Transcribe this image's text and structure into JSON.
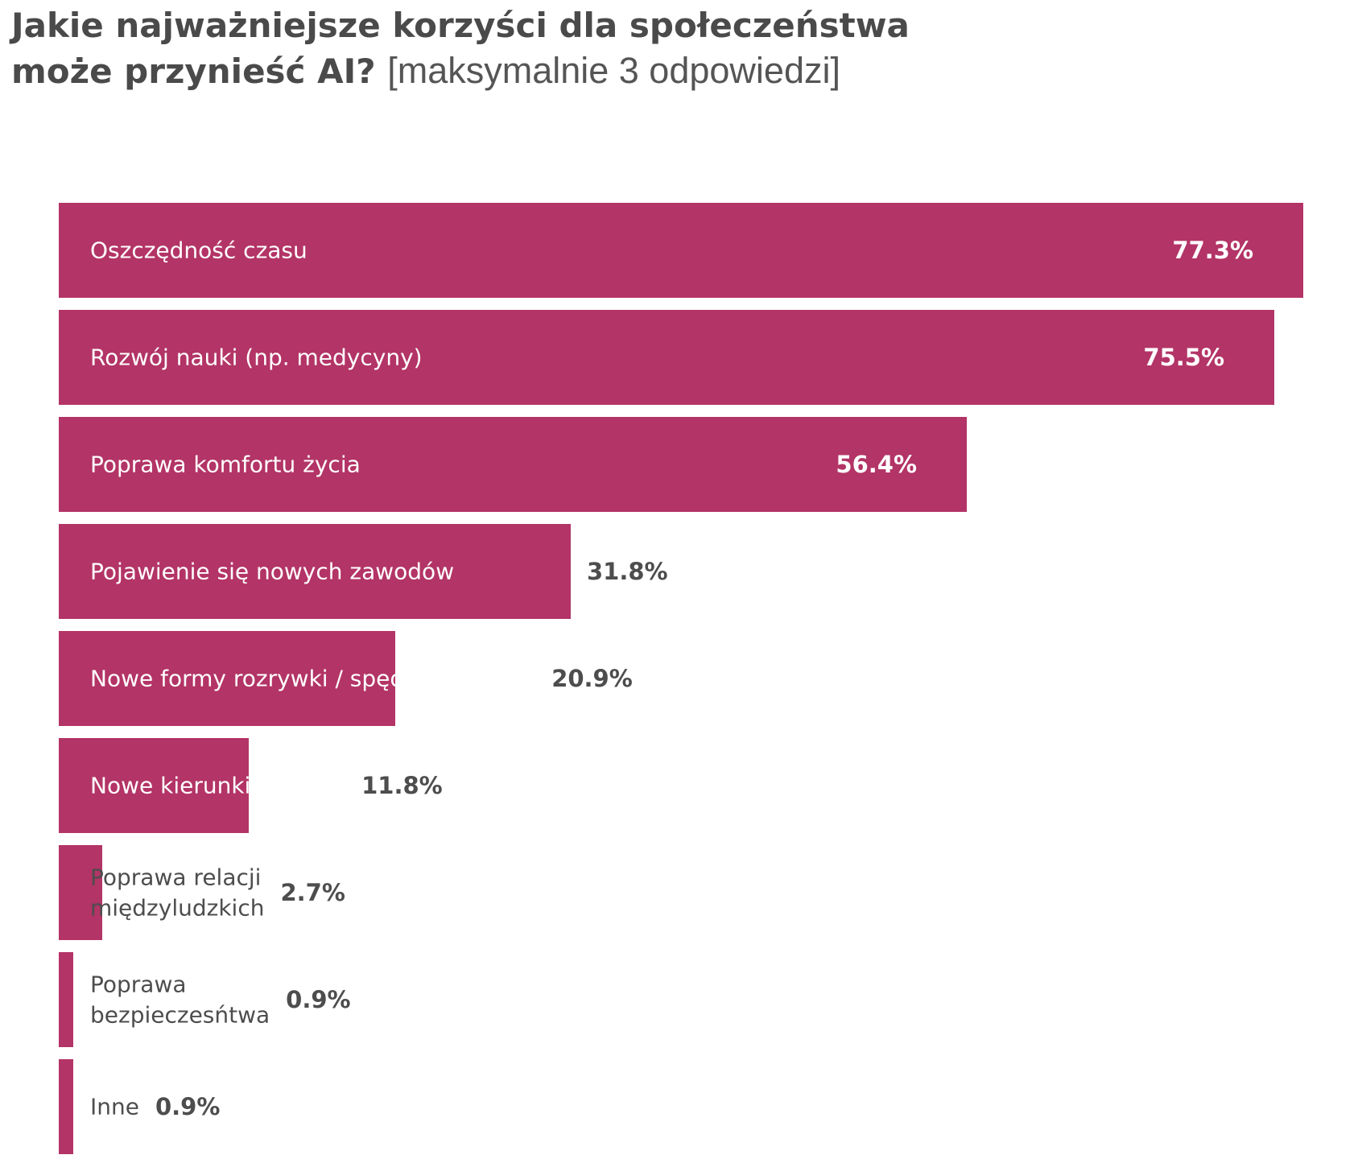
{
  "header": {
    "title_bold_line1": "Jakie najważniejsze korzyści dla społeczeństwa",
    "title_bold_line2": "może przynieść AI?",
    "title_light": "[maksymalnie 3 odpowiedzi]"
  },
  "colors": {
    "bar": "#b33466",
    "text_on_bar": "#ffffff",
    "text_off_bar": "#4d4d4d"
  },
  "chart_data": {
    "type": "bar",
    "orientation": "horizontal",
    "title": "Jakie najważniejsze korzyści dla społeczeństwa może przynieść AI? [maksymalnie 3 odpowiedzi]",
    "categories": [
      [
        "Oszczędność czasu"
      ],
      [
        "Rozwój nauki (np. medycyny)"
      ],
      [
        "Poprawa komfortu życia"
      ],
      [
        "Pojawienie się nowych zawodów"
      ],
      [
        "Nowe formy rozrywki / spędzania czasu"
      ],
      [
        "Nowe kierunki studiów"
      ],
      [
        "Poprawa relacji",
        "międzyludzkich"
      ],
      [
        "Poprawa",
        "bezpieczesńtwa"
      ],
      [
        "Inne"
      ]
    ],
    "values": [
      77.3,
      75.5,
      56.4,
      31.8,
      20.9,
      11.8,
      2.7,
      0.9,
      0.9
    ],
    "value_labels": [
      "77.3%",
      "75.5%",
      "56.4%",
      "31.8%",
      "20.9%",
      "11.8%",
      "2.7%",
      "0.9%",
      "0.9%"
    ],
    "unit": "%",
    "grid": false,
    "legend": "none"
  }
}
